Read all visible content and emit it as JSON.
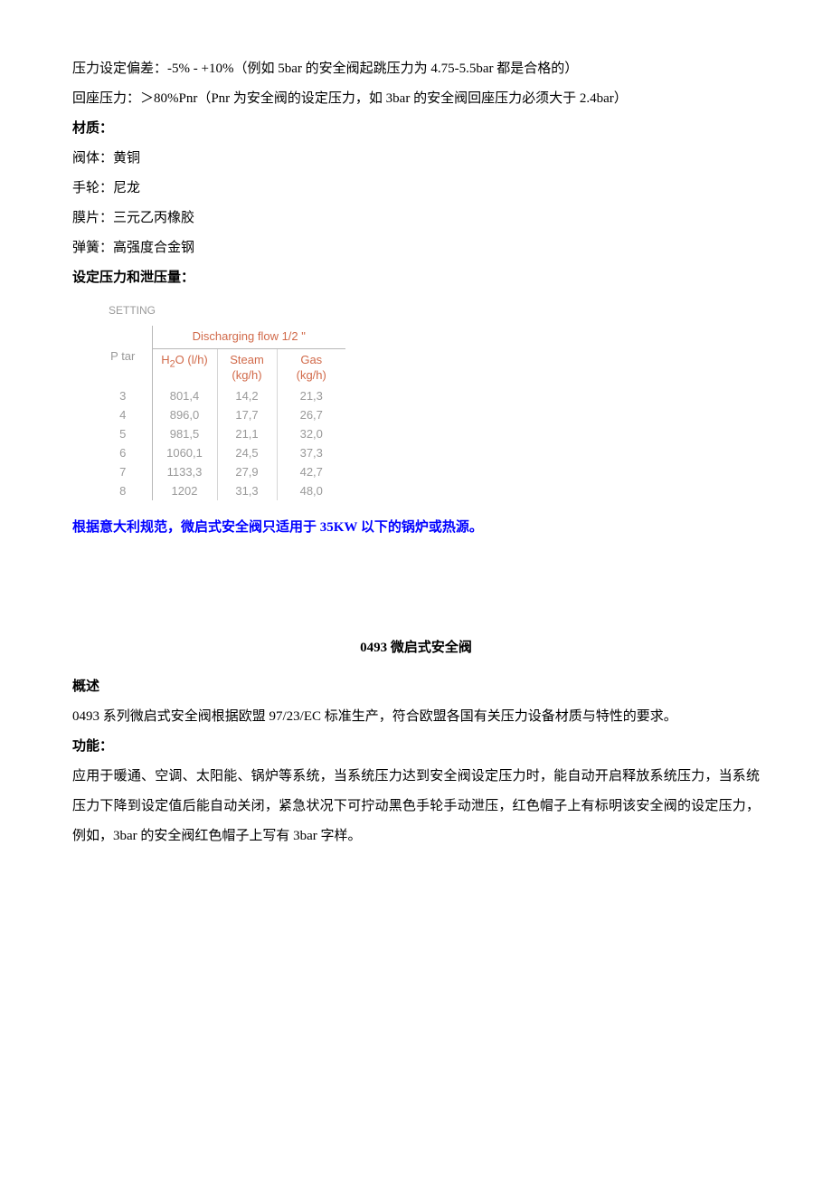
{
  "lines": {
    "l1": "压力设定偏差：-5% - +10%（例如 5bar 的安全阀起跳压力为 4.75-5.5bar 都是合格的）",
    "l2": "回座压力：＞80%Pnr（Pnr 为安全阀的设定压力，如 3bar 的安全阀回座压力必须大于 2.4bar）",
    "l3": "材质：",
    "l4": "阀体：黄铜",
    "l5": "手轮：尼龙",
    "l6": "膜片：三元乙丙橡胶",
    "l7": "弹簧：高强度合金钢",
    "l8": "设定压力和泄压量：",
    "note": "根据意大利规范，微启式安全阀只适用于 35KW 以下的锅炉或热源。",
    "title2": "0493 微启式安全阀",
    "ov_h": "概述",
    "ov_t": "0493 系列微启式安全阀根据欧盟 97/23/EC 标准生产，符合欧盟各国有关压力设备材质与特性的要求。",
    "fn_h": "功能：",
    "fn_t": "应用于暖通、空调、太阳能、锅炉等系统，当系统压力达到安全阀设定压力时，能自动开启释放系统压力，当系统压力下降到设定值后能自动关闭，紧急状况下可拧动黑色手轮手动泄压，红色帽子上有标明该安全阀的设定压力，例如，3bar 的安全阀红色帽子上写有 3bar 字样。"
  },
  "table": {
    "setting_label": "SETTING",
    "group_header": "Discharging flow 1/2 \"",
    "p_header": "P tar",
    "sub_h2o_pre": "H",
    "sub_h2o_sub": "2",
    "sub_h2o_post": "O (l/h)",
    "sub_steam_l1": "Steam",
    "sub_steam_l2": "(kg/h)",
    "sub_gas": "Gas (kg/h)",
    "rows": [
      {
        "p": "3",
        "h2o": "801,4",
        "steam": "14,2",
        "gas": "21,3"
      },
      {
        "p": "4",
        "h2o": "896,0",
        "steam": "17,7",
        "gas": "26,7"
      },
      {
        "p": "5",
        "h2o": "981,5",
        "steam": "21,1",
        "gas": "32,0"
      },
      {
        "p": "6",
        "h2o": "1060,1",
        "steam": "24,5",
        "gas": "37,3"
      },
      {
        "p": "7",
        "h2o": "1133,3",
        "steam": "27,9",
        "gas": "42,7"
      },
      {
        "p": "8",
        "h2o": "1202",
        "steam": "31,3",
        "gas": "48,0"
      }
    ],
    "colors": {
      "header_text": "#d16a4a",
      "body_text": "#9a9a9a",
      "border": "#b8b8b8",
      "inner_border": "#d6d6d6"
    }
  }
}
